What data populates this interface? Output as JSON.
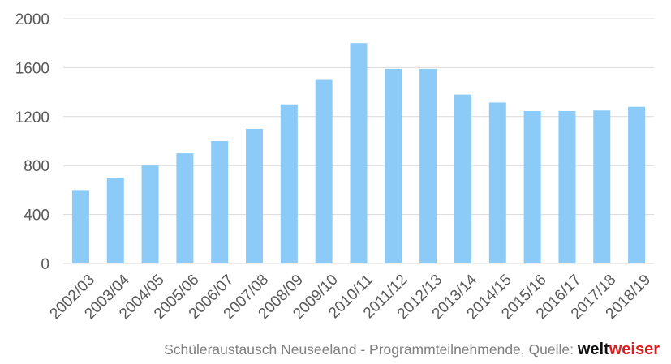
{
  "chart_data": {
    "type": "bar",
    "categories": [
      "2002/03",
      "2003/04",
      "2004/05",
      "2005/06",
      "2006/07",
      "2007/08",
      "2008/09",
      "2009/10",
      "2010/11",
      "2011/12",
      "2012/13",
      "2013/14",
      "2014/15",
      "2015/16",
      "2016/17",
      "2017/18",
      "2018/19"
    ],
    "values": [
      600,
      700,
      800,
      900,
      1000,
      1100,
      1300,
      1500,
      1800,
      1590,
      1590,
      1380,
      1315,
      1245,
      1245,
      1250,
      1280
    ],
    "ylim": [
      0,
      2000
    ],
    "yticks": [
      0,
      400,
      800,
      1200,
      1600,
      2000
    ],
    "grid": true,
    "bar_color": "#8ccbf8",
    "grid_color": "#d9d9d9"
  },
  "caption": {
    "text": "Schüleraustausch Neuseeland - Programmteilnehmende, Quelle: ",
    "brand_part1": "welt",
    "brand_part2": "weiser"
  }
}
